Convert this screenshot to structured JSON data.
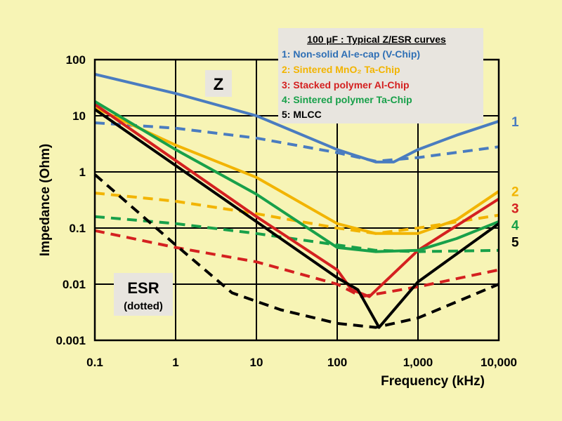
{
  "chart_data": {
    "type": "line",
    "xscale": "log",
    "yscale": "log",
    "xlim": [
      0.1,
      10000
    ],
    "ylim": [
      0.001,
      100
    ],
    "grid": true,
    "xlabel": "Frequency (kHz)",
    "ylabel": "Impedance  (Ohm)",
    "x_ticks": [
      {
        "v": 0.1,
        "label": "0.1"
      },
      {
        "v": 1,
        "label": "1"
      },
      {
        "v": 10,
        "label": "10"
      },
      {
        "v": 100,
        "label": "100"
      },
      {
        "v": 1000,
        "label": "1,000"
      },
      {
        "v": 10000,
        "label": "10,000"
      }
    ],
    "y_ticks": [
      {
        "v": 0.001,
        "label": "0.001"
      },
      {
        "v": 0.01,
        "label": "0.01"
      },
      {
        "v": 0.1,
        "label": "0.1"
      },
      {
        "v": 1,
        "label": "1"
      },
      {
        "v": 10,
        "label": "10"
      },
      {
        "v": 100,
        "label": "100"
      }
    ],
    "annotations": {
      "z_label": "Z",
      "esr_label": "ESR",
      "esr_sub": "(dotted)"
    },
    "legend": {
      "position": "top-right",
      "title": "100 µF : Typical Z/ESR curves",
      "entries": [
        {
          "text": "1: Non-solid Al-e-cap (V-Chip)",
          "color": "#2e6fb5"
        },
        {
          "text": "2: Sintered MnO₂ Ta-Chip",
          "color": "#f2b400"
        },
        {
          "text": "3: Stacked polymer Al-Chip",
          "color": "#d42020"
        },
        {
          "text": "4: Sintered polymer Ta-Chip",
          "color": "#18a04a"
        },
        {
          "text": "5: MLCC",
          "color": "#000000"
        }
      ]
    },
    "series": [
      {
        "id": "1",
        "kind": "Z",
        "color": "#4a7cc0",
        "end_label": "1",
        "points": [
          [
            0.1,
            55
          ],
          [
            1,
            25
          ],
          [
            10,
            10
          ],
          [
            100,
            2.5
          ],
          [
            300,
            1.5
          ],
          [
            500,
            1.5
          ],
          [
            1000,
            2.5
          ],
          [
            3000,
            4.5
          ],
          [
            10000,
            8
          ]
        ]
      },
      {
        "id": "1",
        "kind": "ESR",
        "color": "#4a7cc0",
        "points": [
          [
            0.1,
            7.5
          ],
          [
            1,
            6
          ],
          [
            10,
            4
          ],
          [
            100,
            2.2
          ],
          [
            300,
            1.55
          ],
          [
            1000,
            1.8
          ],
          [
            10000,
            2.8
          ]
        ]
      },
      {
        "id": "2",
        "kind": "Z",
        "color": "#f2b400",
        "end_label": "2",
        "points": [
          [
            0.1,
            14
          ],
          [
            1,
            3
          ],
          [
            10,
            0.8
          ],
          [
            100,
            0.12
          ],
          [
            300,
            0.08
          ],
          [
            1000,
            0.08
          ],
          [
            3000,
            0.14
          ],
          [
            10000,
            0.45
          ]
        ]
      },
      {
        "id": "2",
        "kind": "ESR",
        "color": "#f2b400",
        "points": [
          [
            0.1,
            0.42
          ],
          [
            1,
            0.3
          ],
          [
            10,
            0.18
          ],
          [
            100,
            0.1
          ],
          [
            300,
            0.08
          ],
          [
            1000,
            0.1
          ],
          [
            10000,
            0.17
          ]
        ]
      },
      {
        "id": "3",
        "kind": "Z",
        "color": "#d42020",
        "end_label": "3",
        "points": [
          [
            0.1,
            16
          ],
          [
            1,
            1.6
          ],
          [
            10,
            0.16
          ],
          [
            100,
            0.018
          ],
          [
            150,
            0.008
          ],
          [
            250,
            0.006
          ],
          [
            1000,
            0.04
          ],
          [
            10000,
            0.33
          ]
        ]
      },
      {
        "id": "3",
        "kind": "ESR",
        "color": "#d42020",
        "points": [
          [
            0.1,
            0.09
          ],
          [
            1,
            0.045
          ],
          [
            10,
            0.025
          ],
          [
            100,
            0.01
          ],
          [
            200,
            0.006
          ],
          [
            1000,
            0.009
          ],
          [
            10000,
            0.018
          ]
        ]
      },
      {
        "id": "4",
        "kind": "Z",
        "color": "#18a04a",
        "end_label": "4",
        "points": [
          [
            0.1,
            18
          ],
          [
            1,
            2.5
          ],
          [
            10,
            0.4
          ],
          [
            100,
            0.045
          ],
          [
            300,
            0.038
          ],
          [
            1000,
            0.04
          ],
          [
            3000,
            0.065
          ],
          [
            10000,
            0.13
          ]
        ]
      },
      {
        "id": "4",
        "kind": "ESR",
        "color": "#18a04a",
        "points": [
          [
            0.1,
            0.16
          ],
          [
            1,
            0.12
          ],
          [
            10,
            0.08
          ],
          [
            100,
            0.05
          ],
          [
            300,
            0.04
          ],
          [
            1000,
            0.038
          ],
          [
            10000,
            0.04
          ]
        ]
      },
      {
        "id": "5",
        "kind": "Z",
        "color": "#000000",
        "end_label": "5",
        "points": [
          [
            0.1,
            13
          ],
          [
            1,
            1.3
          ],
          [
            10,
            0.13
          ],
          [
            100,
            0.013
          ],
          [
            180,
            0.008
          ],
          [
            330,
            0.0017
          ],
          [
            1000,
            0.011
          ],
          [
            10000,
            0.12
          ]
        ]
      },
      {
        "id": "5",
        "kind": "ESR",
        "color": "#000000",
        "points": [
          [
            0.1,
            0.9
          ],
          [
            1,
            0.05
          ],
          [
            5,
            0.007
          ],
          [
            20,
            0.0035
          ],
          [
            100,
            0.002
          ],
          [
            300,
            0.0017
          ],
          [
            1000,
            0.0025
          ],
          [
            10000,
            0.01
          ]
        ]
      }
    ]
  }
}
